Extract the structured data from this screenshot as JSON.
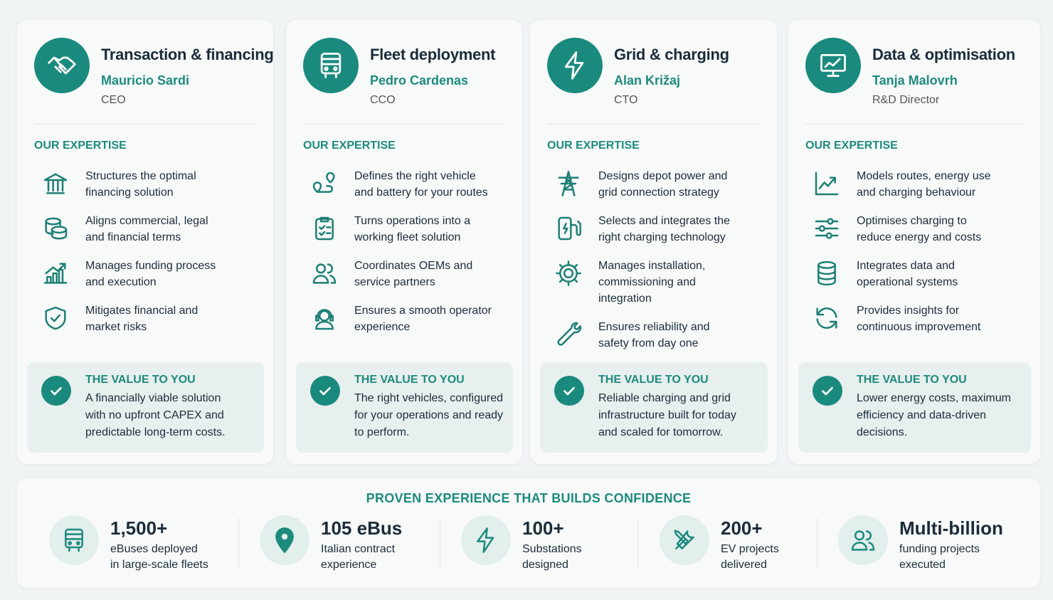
{
  "cards": [
    {
      "title": "Transaction & financing",
      "name": "Mauricio Sardi",
      "role": "CEO",
      "expertise_heading": "OUR EXPERTISE",
      "items": [
        [
          "Structures the optimal",
          "financing solution"
        ],
        [
          "Aligns commercial, legal",
          "and financial terms"
        ],
        [
          "Manages funding process",
          "and execution"
        ],
        [
          "Mitigates financial and",
          "market risks"
        ]
      ],
      "value_heading": "THE VALUE TO YOU",
      "value_text": [
        "A financially viable solution",
        "with no upfront CAPEX and",
        "predictable long-term costs."
      ]
    },
    {
      "title": "Fleet deployment",
      "name": "Pedro Cardenas",
      "role": "CCO",
      "expertise_heading": "OUR EXPERTISE",
      "items": [
        [
          "Defines the right vehicle",
          "and battery for your routes"
        ],
        [
          "Turns operations into a",
          "working fleet solution"
        ],
        [
          "Coordinates OEMs and",
          "service partners"
        ],
        [
          "Ensures a smooth operator",
          "experience"
        ]
      ],
      "value_heading": "THE VALUE TO YOU",
      "value_text": [
        "The right vehicles, configured",
        "for your operations and ready",
        "to perform."
      ]
    },
    {
      "title": "Grid & charging",
      "name": "Alan Križaj",
      "role": "CTO",
      "expertise_heading": "OUR EXPERTISE",
      "items": [
        [
          "Designs depot power and",
          "grid connection strategy"
        ],
        [
          "Selects and integrates the",
          "right charging technology"
        ],
        [
          "Manages installation,",
          "commissioning and",
          "integration"
        ],
        [
          "Ensures reliability and",
          "safety from day one"
        ]
      ],
      "value_heading": "THE VALUE TO YOU",
      "value_text": [
        "Reliable charging and grid",
        "infrastructure built for today",
        "and scaled for tomorrow."
      ]
    },
    {
      "title": "Data & optimisation",
      "name": "Tanja Malovrh",
      "role": "R&D Director",
      "expertise_heading": "OUR EXPERTISE",
      "items": [
        [
          "Models routes, energy use",
          "and charging behaviour"
        ],
        [
          "Optimises charging to",
          "reduce energy and costs"
        ],
        [
          "Integrates data and",
          "operational systems"
        ],
        [
          "Provides insights for",
          "continuous improvement"
        ]
      ],
      "value_heading": "THE VALUE TO YOU",
      "value_text": [
        "Lower energy costs, maximum",
        "efficiency and data-driven",
        "decisions."
      ]
    }
  ],
  "stats": {
    "heading": "PROVEN EXPERIENCE THAT BUILDS CONFIDENCE",
    "items": [
      {
        "value": "1,500+",
        "label": [
          "eBuses deployed",
          "in large-scale fleets"
        ]
      },
      {
        "value": "105 eBus",
        "label": [
          "Italian contract",
          "experience"
        ]
      },
      {
        "value": "100+",
        "label": [
          "Substations",
          "designed"
        ]
      },
      {
        "value": "200+",
        "label": [
          "EV projects",
          "delivered"
        ]
      },
      {
        "value": "Multi-billion",
        "label": [
          "funding projects",
          "executed"
        ]
      }
    ]
  }
}
